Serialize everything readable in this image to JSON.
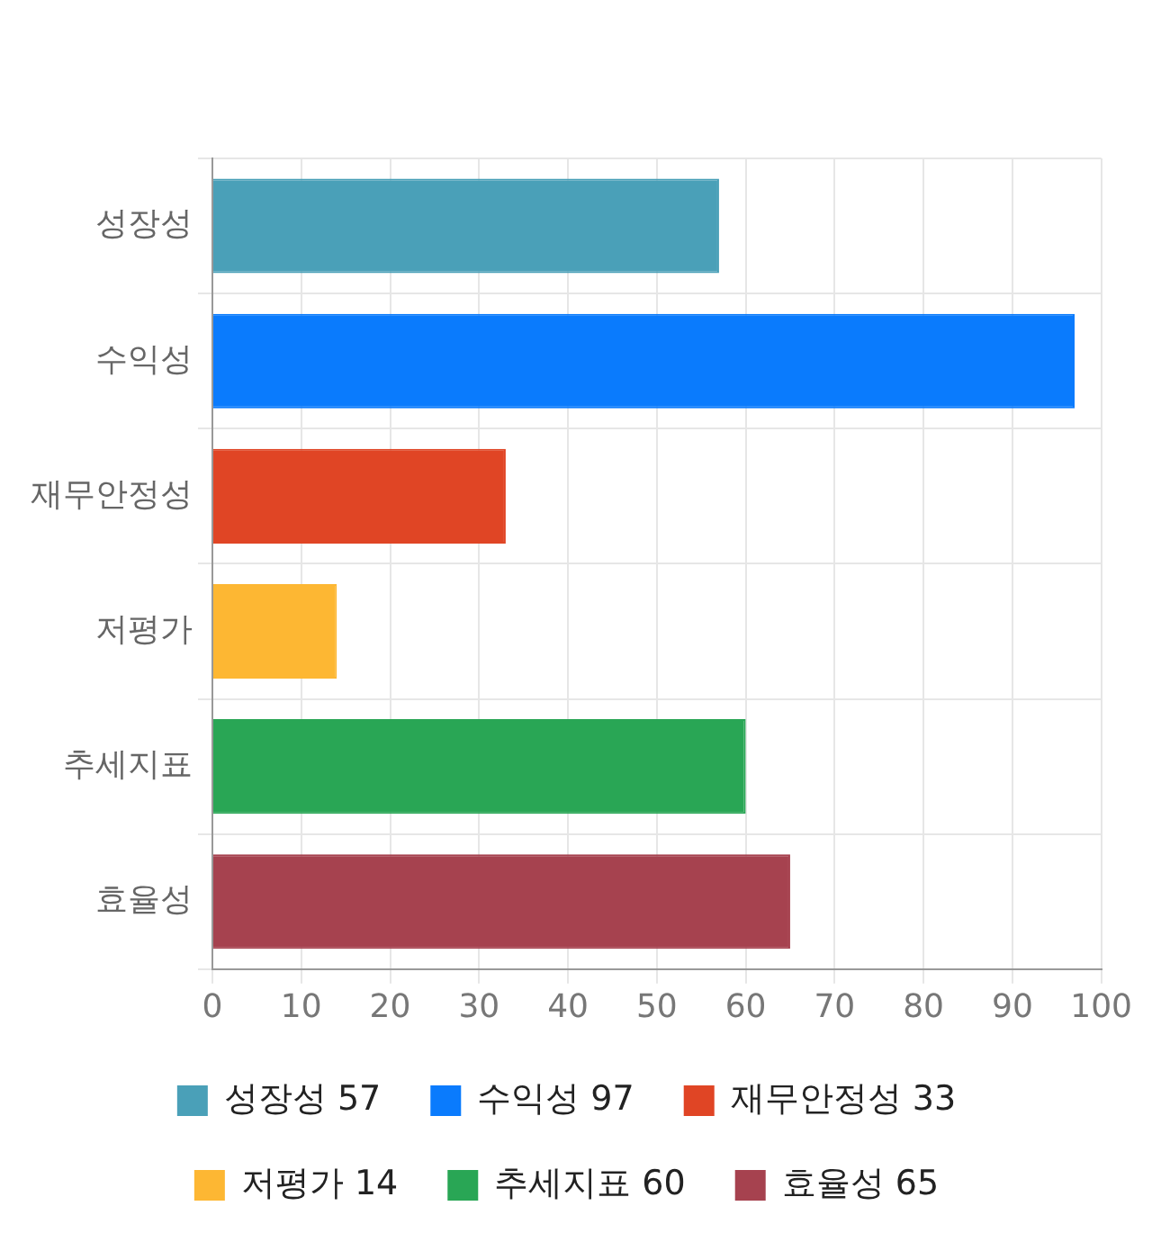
{
  "chart_data": {
    "type": "bar",
    "orientation": "horizontal",
    "stacked": true,
    "categories": [
      "성장성",
      "수익성",
      "재무안정성",
      "저평가",
      "추세지표",
      "효율성"
    ],
    "series": [
      {
        "name": "성장성 57",
        "color": "#4aa0b8",
        "values": [
          57,
          null,
          null,
          null,
          null,
          null
        ]
      },
      {
        "name": "수익성 97",
        "color": "#0a7bfd",
        "values": [
          null,
          97,
          null,
          null,
          null,
          null
        ]
      },
      {
        "name": "재무안정성 33",
        "color": "#e04525",
        "values": [
          null,
          null,
          33,
          null,
          null,
          null
        ]
      },
      {
        "name": "저평가 14",
        "color": "#fdb733",
        "values": [
          null,
          null,
          null,
          14,
          null,
          null
        ]
      },
      {
        "name": "추세지표 60",
        "color": "#29a655",
        "values": [
          null,
          null,
          null,
          null,
          60,
          null
        ]
      },
      {
        "name": "효율성 65",
        "color": "#a6424f",
        "values": [
          null,
          null,
          null,
          null,
          null,
          65
        ]
      }
    ],
    "xlim": [
      0,
      100
    ],
    "xticks": [
      0,
      10,
      20,
      30,
      40,
      50,
      60,
      70,
      80,
      90,
      100
    ],
    "grid": true,
    "legend": "bottom"
  }
}
